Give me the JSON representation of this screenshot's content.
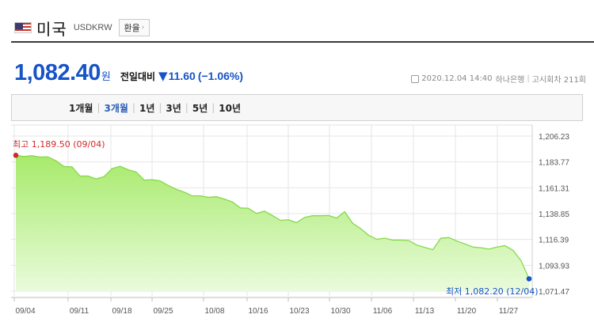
{
  "header": {
    "country": "미국",
    "code": "USDKRW",
    "exchange_button": "환율"
  },
  "price": {
    "value": "1,082.40",
    "unit": "원",
    "compare_label": "전일대비",
    "change": "11.60",
    "change_pct": "(−1.06%)",
    "direction": "down"
  },
  "meta": {
    "datetime": "2020.12.04 14:40",
    "bank": "하나은행",
    "round": "고시회차 211회"
  },
  "tabs": [
    "1개월",
    "3개월",
    "1년",
    "3년",
    "5년",
    "10년"
  ],
  "active_tab": "3개월",
  "colors": {
    "accent": "#1654c7",
    "high": "#d02a2a",
    "fill_top": "#a7ea6a",
    "fill_bottom": "#e9fbdc",
    "line": "#86d84a"
  },
  "chart_data": {
    "type": "area",
    "high_label": "최고 1,189.50 (09/04)",
    "low_label": "최저 1,082.20 (12/04)",
    "x_ticks": [
      "09/04",
      "09/11",
      "09/18",
      "09/25",
      "10/08",
      "10/16",
      "10/23",
      "10/30",
      "11/06",
      "11/13",
      "11/20",
      "11/27"
    ],
    "y_ticks": [
      "1,206.23",
      "1,183.77",
      "1,161.31",
      "1,138.85",
      "1,116.39",
      "1,093.93",
      "1,071.47"
    ],
    "ylim": [
      1071.47,
      1206.23
    ],
    "series": [
      {
        "values": [
          1189.5,
          1188.5,
          1189.2,
          1188.0,
          1188.2,
          1184.8,
          1179.8,
          1179.5,
          1171.5,
          1171.5,
          1169.0,
          1171.0,
          1178.0,
          1180.0,
          1177.0,
          1175.0,
          1168.0,
          1168.3,
          1167.3,
          1163.3,
          1160.0,
          1157.5,
          1154.3,
          1154.3,
          1153.0,
          1153.5,
          1151.5,
          1149.0,
          1143.8,
          1143.5,
          1139.0,
          1141.0,
          1137.2,
          1133.0,
          1133.5,
          1131.0,
          1135.5,
          1137.0,
          1137.0,
          1137.2,
          1135.0,
          1140.5,
          1130.5,
          1125.8,
          1120.0,
          1116.5,
          1117.5,
          1115.8,
          1115.8,
          1115.5,
          1111.5,
          1109.5,
          1107.5,
          1117.5,
          1118.0,
          1115.0,
          1112.5,
          1109.8,
          1109.2,
          1108.0,
          1109.8,
          1111.0,
          1107.0,
          1098.0,
          1082.2
        ]
      }
    ]
  }
}
